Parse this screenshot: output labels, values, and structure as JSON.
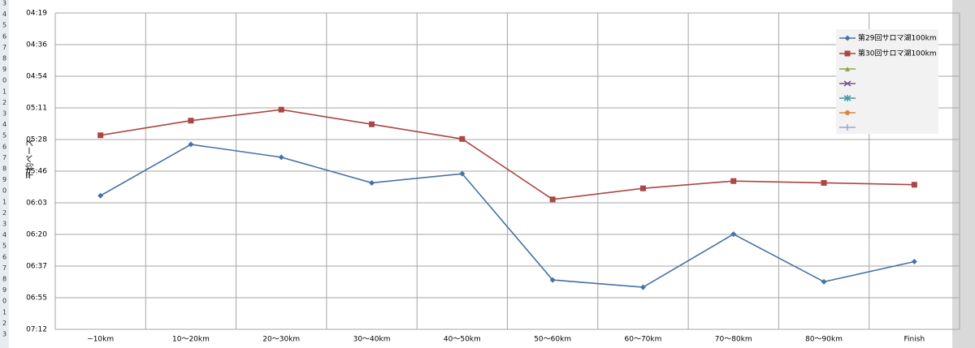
{
  "row_headers": [
    "3",
    "4",
    "5",
    "6",
    "7",
    "8",
    "9",
    "0",
    "1",
    "2",
    "3",
    "4",
    "5",
    "6",
    "7",
    "8",
    "9",
    "0",
    "1",
    "2",
    "3",
    "4",
    "5",
    "6",
    "7",
    "8",
    "9",
    "0",
    "1",
    "2",
    "3"
  ],
  "chart_data": {
    "type": "line",
    "y_label": "平均ペース",
    "categories": [
      "~10km",
      "10～20km",
      "20～30km",
      "30～40km",
      "40～50km",
      "50～60km",
      "60～70km",
      "70～80km",
      "80～90km",
      "Finish"
    ],
    "series": [
      {
        "name": "第29回サロマ湖100km",
        "color": "#4572a7",
        "marker": "diamond",
        "values": [
          359,
          331,
          338,
          352,
          347,
          405,
          409,
          380,
          406,
          395
        ]
      },
      {
        "name": "第30回サロマ湖100km",
        "color": "#aa4643",
        "marker": "square",
        "values": [
          326,
          318,
          312,
          320,
          328,
          361,
          355,
          351,
          352,
          353
        ]
      }
    ],
    "ylim": [
      259.2,
      432
    ],
    "y_reversed": true,
    "yticks": [
      {
        "value": 259.2,
        "label": "04:19"
      },
      {
        "value": 276.48,
        "label": "04:36"
      },
      {
        "value": 293.76,
        "label": "04:54"
      },
      {
        "value": 311.04,
        "label": "05:11"
      },
      {
        "value": 328.32,
        "label": "05:28"
      },
      {
        "value": 345.6,
        "label": "05:46"
      },
      {
        "value": 362.88,
        "label": "06:03"
      },
      {
        "value": 380.16,
        "label": "06:20"
      },
      {
        "value": 397.44,
        "label": "06:37"
      },
      {
        "value": 414.72,
        "label": "06:55"
      },
      {
        "value": 432,
        "label": "07:12"
      }
    ],
    "grid": true
  }
}
